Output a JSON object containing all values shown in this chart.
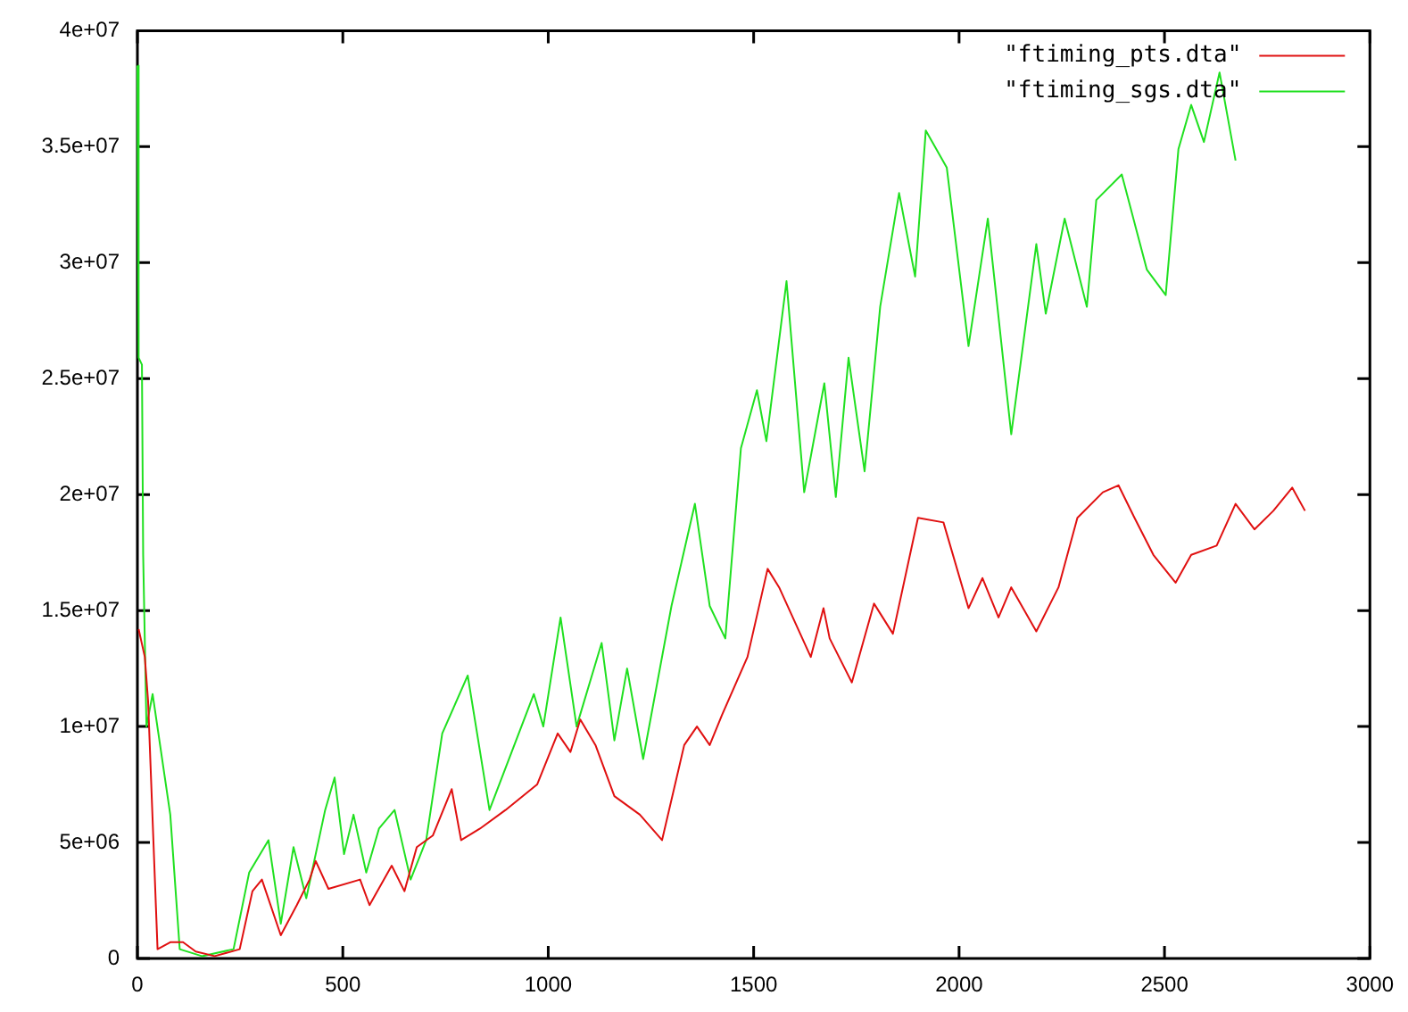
{
  "chart_data": {
    "type": "line",
    "xlim": [
      0,
      3000
    ],
    "ylim": [
      0,
      40000000
    ],
    "xticks": [
      0,
      500,
      1000,
      1500,
      2000,
      2500,
      3000
    ],
    "yticks": [
      0,
      {
        "value": 5000000,
        "label": "5e+06"
      },
      {
        "value": 10000000,
        "label": "1e+07"
      },
      {
        "value": 15000000,
        "label": "1.5e+07"
      },
      {
        "value": 20000000,
        "label": "2e+07"
      },
      {
        "value": 25000000,
        "label": "2.5e+07"
      },
      {
        "value": 30000000,
        "label": "3e+07"
      },
      {
        "value": 35000000,
        "label": "3.5e+07"
      },
      {
        "value": 40000000,
        "label": "4e+07"
      }
    ],
    "legend": "top right",
    "grid": false,
    "marker": "none",
    "line_style": "solid",
    "series": [
      {
        "name": "\"ftiming_pts.dta\"",
        "color": "#e01010",
        "x": [
          3,
          18,
          26,
          49,
          80,
          111,
          142,
          188,
          249,
          280,
          303,
          349,
          388,
          419,
          434,
          465,
          542,
          565,
          619,
          650,
          680,
          719,
          765,
          788,
          834,
          896,
          973,
          1023,
          1054,
          1078,
          1115,
          1161,
          1223,
          1277,
          1331,
          1362,
          1393,
          1423,
          1485,
          1534,
          1562,
          1639,
          1670,
          1685,
          1739,
          1793,
          1839,
          1900,
          1962,
          2023,
          2057,
          2096,
          2127,
          2188,
          2242,
          2288,
          2350,
          2388,
          2427,
          2473,
          2527,
          2565,
          2627,
          2673,
          2719,
          2765,
          2811,
          2842
        ],
        "values": [
          14200000,
          13000000,
          11100000,
          400000,
          700000,
          700000,
          300000,
          100000,
          400000,
          2900000,
          3400000,
          1000000,
          2300000,
          3400000,
          4200000,
          3000000,
          3400000,
          2300000,
          4000000,
          2900000,
          4800000,
          5300000,
          7300000,
          5100000,
          5600000,
          6400000,
          7500000,
          9700000,
          8900000,
          10300000,
          9200000,
          7000000,
          6200000,
          5100000,
          9200000,
          10000000,
          9200000,
          10500000,
          13000000,
          16800000,
          16000000,
          13000000,
          15100000,
          13800000,
          11900000,
          15300000,
          14000000,
          19000000,
          18800000,
          15100000,
          16400000,
          14700000,
          16000000,
          14100000,
          16000000,
          19000000,
          20100000,
          20400000,
          19000000,
          17400000,
          16200000,
          17400000,
          17800000,
          19600000,
          18500000,
          19300000,
          20300000,
          19300000
        ]
      },
      {
        "name": "\"ftiming_sgs.dta\"",
        "color": "#20e020",
        "x": [
          0,
          3,
          11,
          14,
          22,
          37,
          80,
          103,
          157,
          234,
          272,
          319,
          349,
          380,
          411,
          457,
          480,
          503,
          526,
          557,
          588,
          626,
          665,
          703,
          742,
          804,
          857,
          911,
          965,
          988,
          1030,
          1069,
          1130,
          1161,
          1192,
          1231,
          1300,
          1357,
          1393,
          1431,
          1469,
          1508,
          1531,
          1580,
          1623,
          1672,
          1700,
          1731,
          1770,
          1808,
          1854,
          1893,
          1919,
          1970,
          2023,
          2070,
          2127,
          2188,
          2211,
          2257,
          2311,
          2334,
          2396,
          2457,
          2503,
          2534,
          2565,
          2596,
          2634,
          2673
        ],
        "values": [
          38500000,
          25900000,
          25600000,
          17400000,
          10000000,
          11400000,
          6200000,
          400000,
          100000,
          400000,
          3700000,
          5100000,
          1500000,
          4800000,
          2600000,
          6400000,
          7800000,
          4500000,
          6200000,
          3700000,
          5600000,
          6400000,
          3400000,
          5100000,
          9700000,
          12200000,
          6400000,
          8900000,
          11400000,
          10000000,
          14700000,
          10000000,
          13600000,
          9400000,
          12500000,
          8600000,
          15200000,
          19600000,
          15200000,
          13800000,
          22000000,
          24500000,
          22300000,
          29200000,
          20100000,
          24800000,
          19900000,
          25900000,
          21000000,
          28100000,
          33000000,
          29400000,
          35700000,
          34100000,
          26400000,
          31900000,
          22600000,
          30800000,
          27800000,
          31900000,
          28100000,
          32700000,
          33800000,
          29700000,
          28600000,
          34900000,
          36800000,
          35200000,
          38200000,
          34400000
        ]
      }
    ]
  }
}
